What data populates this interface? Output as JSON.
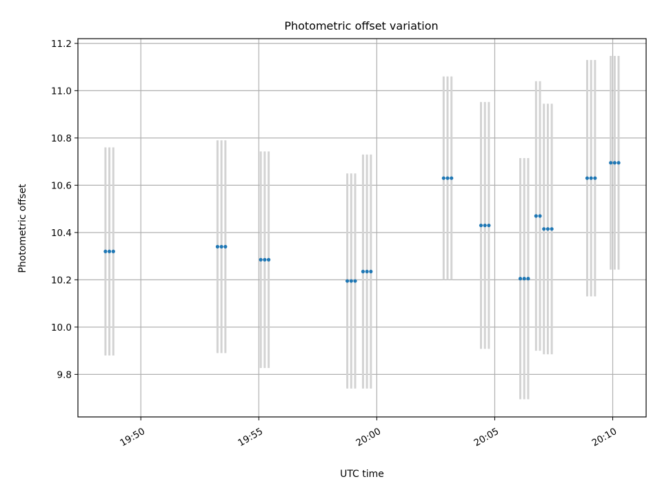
{
  "chart_data": {
    "type": "scatter",
    "title": "Photometric offset variation",
    "xlabel": "UTC time",
    "ylabel": "Photometric offset",
    "xlim": [
      "19:47:20",
      "20:11:25"
    ],
    "ylim": [
      9.62,
      11.22
    ],
    "x_ticks": [
      "19:50",
      "19:55",
      "20:00",
      "20:05",
      "20:10"
    ],
    "y_ticks": [
      "9.8",
      "10.0",
      "10.2",
      "10.4",
      "10.6",
      "10.8",
      "11.0",
      "11.2"
    ],
    "grid": true,
    "colors": {
      "point": "#1f77b4",
      "errorbar": "#d3d3d3",
      "grid": "#b0b0b0"
    },
    "groups": [
      {
        "x": [
          "19:48:30",
          "19:48:40",
          "19:48:50"
        ],
        "y": 10.32,
        "yerr": 0.44
      },
      {
        "x": [
          "19:53:15",
          "19:53:25",
          "19:53:35"
        ],
        "y": 10.34,
        "yerr": 0.45
      },
      {
        "x": [
          "19:55:05",
          "19:55:15",
          "19:55:25"
        ],
        "y": 10.285,
        "yerr": 0.458
      },
      {
        "x": [
          "19:58:45",
          "19:58:55",
          "19:59:05"
        ],
        "y": 10.195,
        "yerr": 0.455
      },
      {
        "x": [
          "19:59:25",
          "19:59:35",
          "19:59:45"
        ],
        "y": 10.235,
        "yerr": 0.495
      },
      {
        "x": [
          "20:02:50",
          "20:03:00",
          "20:03:10"
        ],
        "y": 10.63,
        "yerr": 0.43
      },
      {
        "x": [
          "20:04:25",
          "20:04:35",
          "20:04:45"
        ],
        "y": 10.43,
        "yerr": 0.522
      },
      {
        "x": [
          "20:06:05",
          "20:06:15",
          "20:06:25"
        ],
        "y": 10.205,
        "yerr": 0.51
      },
      {
        "x": [
          "20:06:45",
          "20:06:55"
        ],
        "y": 10.47,
        "yerr": 0.57
      },
      {
        "x": [
          "20:07:05",
          "20:07:15",
          "20:07:25"
        ],
        "y": 10.415,
        "yerr": 0.53
      },
      {
        "x": [
          "20:08:55",
          "20:09:05",
          "20:09:15"
        ],
        "y": 10.63,
        "yerr": 0.5
      },
      {
        "x": [
          "20:09:55",
          "20:10:05",
          "20:10:15"
        ],
        "y": 10.695,
        "yerr": 0.452
      }
    ]
  }
}
